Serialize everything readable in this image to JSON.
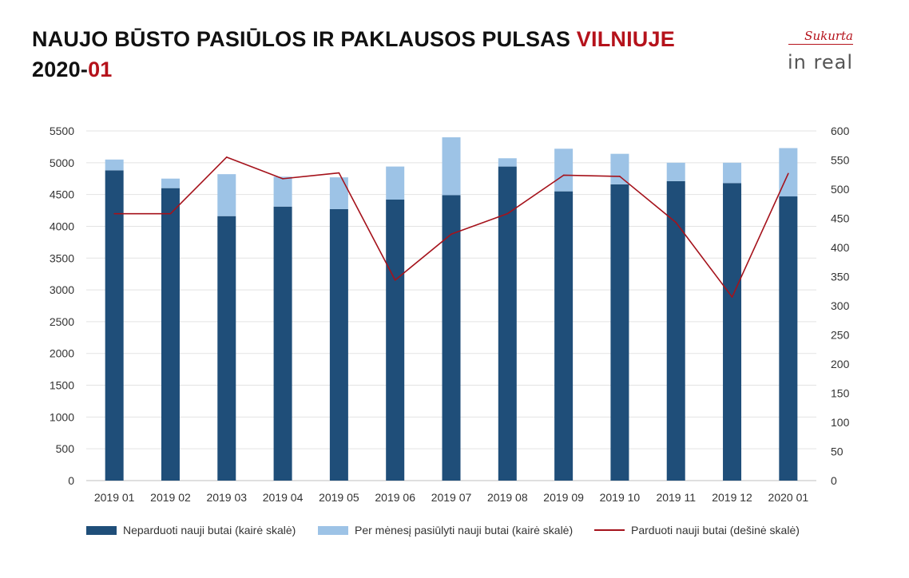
{
  "header": {
    "title_main": "NAUJO BŪSTO PASIŪLOS IR PAKLAUSOS PULSAS ",
    "title_accent": "VILNIUJE",
    "date_main": "2020-",
    "date_accent": "01"
  },
  "brand": {
    "tagline": "Sukurta",
    "logo": "in real"
  },
  "colors": {
    "unsold": "#1f4e79",
    "offered": "#9dc3e6",
    "sold": "#a5121b",
    "accent": "#b5121b"
  },
  "chart_data": {
    "type": "bar",
    "stacked": true,
    "categories": [
      "2019 01",
      "2019 02",
      "2019 03",
      "2019 04",
      "2019 05",
      "2019 06",
      "2019 07",
      "2019 08",
      "2019 09",
      "2019 10",
      "2019 11",
      "2019 12",
      "2020 01"
    ],
    "series": [
      {
        "name": "Neparduoti nauji butai (kairė skalė)",
        "type": "bar",
        "axis": "left",
        "color": "#1f4e79",
        "values": [
          4880,
          4600,
          4160,
          4310,
          4270,
          4420,
          4490,
          4940,
          4550,
          4660,
          4710,
          4680,
          4470
        ]
      },
      {
        "name": "Per mėnesį pasiūlyti nauji butai (kairė skalė)",
        "type": "bar",
        "axis": "left",
        "color": "#9dc3e6",
        "values": [
          170,
          150,
          660,
          470,
          500,
          520,
          910,
          130,
          670,
          480,
          290,
          320,
          760
        ]
      },
      {
        "name": "Parduoti nauji butai (dešinė skalė)",
        "type": "line",
        "axis": "right",
        "color": "#a5121b",
        "values": [
          458,
          458,
          555,
          518,
          528,
          344,
          423,
          458,
          524,
          522,
          443,
          315,
          527
        ]
      }
    ],
    "y_left": {
      "min": 0,
      "max": 5500,
      "step": 500
    },
    "y_right": {
      "min": 0,
      "max": 600,
      "step": 50
    },
    "grid": true,
    "legend_position": "bottom"
  }
}
